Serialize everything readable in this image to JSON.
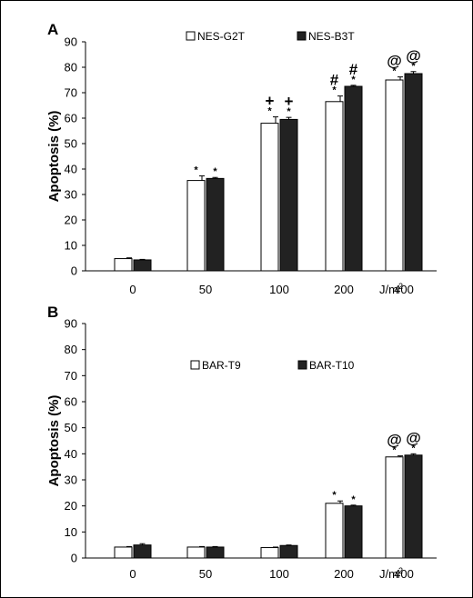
{
  "chart_data": [
    {
      "type": "bar",
      "panel": "A",
      "categories": [
        "0",
        "50",
        "100",
        "200",
        "400"
      ],
      "x_unit_base": "J/m",
      "x_unit_exp": "2",
      "ylabel": "Apoptosis (%)",
      "ylim": [
        0,
        90
      ],
      "yticks": [
        "0",
        "10",
        "20",
        "30",
        "40",
        "50",
        "60",
        "70",
        "80",
        "90"
      ],
      "legend_position": "top",
      "series": [
        {
          "name": "NES-G2T",
          "color": "#ffffff",
          "values": [
            4.8,
            35.5,
            58,
            66.5,
            75
          ],
          "errors": [
            0.3,
            1.8,
            2.5,
            2.2,
            1.2
          ]
        },
        {
          "name": "NES-B3T",
          "color": "#222222",
          "values": [
            4.3,
            36.3,
            59.5,
            72.5,
            77.5
          ],
          "errors": [
            0.2,
            0.4,
            0.8,
            0.4,
            0.8
          ]
        }
      ],
      "star": "*",
      "symbols": [
        "",
        "",
        "+",
        "#",
        "@"
      ]
    },
    {
      "type": "bar",
      "panel": "B",
      "categories": [
        "0",
        "50",
        "100",
        "200",
        "400"
      ],
      "x_unit_base": "J/m",
      "x_unit_exp": "2",
      "ylabel": "Apoptosis (%)",
      "ylim": [
        0,
        90
      ],
      "yticks": [
        "0",
        "10",
        "20",
        "30",
        "40",
        "50",
        "60",
        "70",
        "80",
        "90"
      ],
      "legend_position": "middle",
      "series": [
        {
          "name": "BAR-T9",
          "color": "#ffffff",
          "values": [
            4.2,
            4.2,
            4,
            21,
            38.8
          ],
          "errors": [
            0.2,
            0.2,
            0.2,
            0.9,
            0.4
          ]
        },
        {
          "name": "BAR-T10",
          "color": "#222222",
          "values": [
            5,
            4.2,
            4.8,
            20,
            39.5
          ],
          "errors": [
            0.5,
            0.2,
            0.2,
            0.3,
            0.5
          ]
        }
      ],
      "star": "*",
      "symbols": [
        "",
        "",
        "",
        "",
        "@"
      ],
      "stars_from_index": 3
    }
  ]
}
